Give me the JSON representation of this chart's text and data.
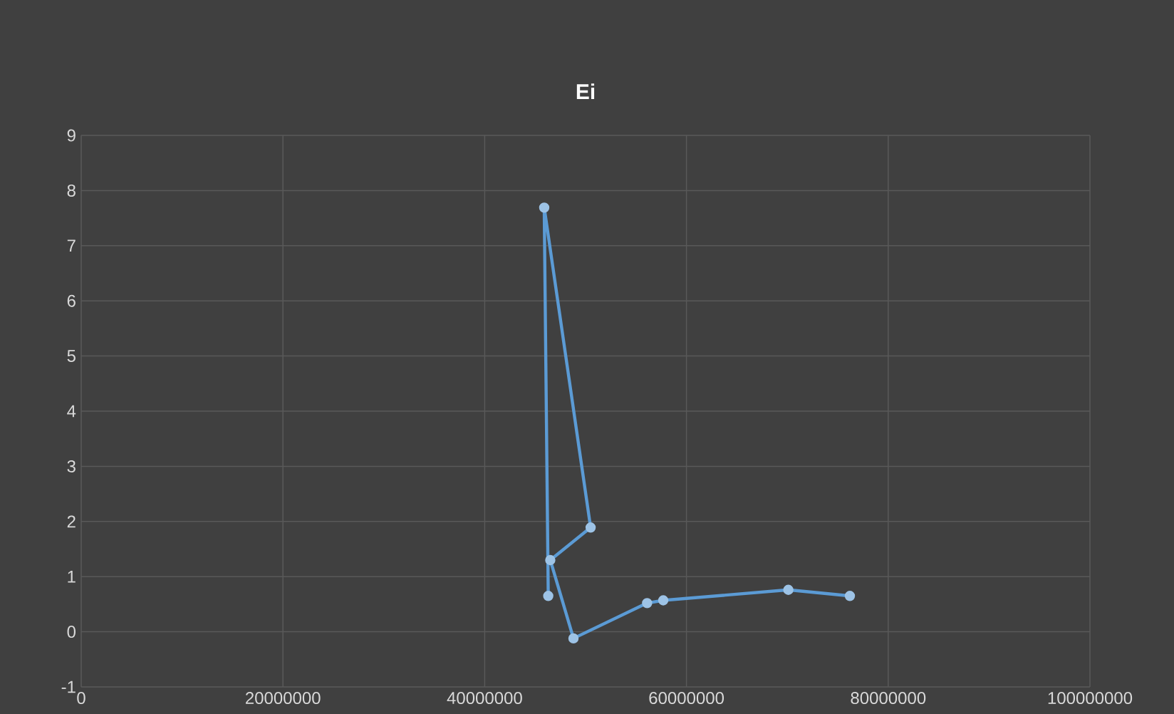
{
  "chart_data": {
    "type": "line",
    "title": "Ei",
    "x": [
      46300000,
      45900000,
      50500000,
      46500000,
      48800000,
      56100000,
      57700000,
      70100000,
      76200000
    ],
    "series": [
      {
        "color": "#5b9bd5",
        "values": [
          0.65,
          7.69,
          1.89,
          1.3,
          -0.12,
          0.52,
          0.57,
          0.76,
          0.65
        ]
      }
    ],
    "xlim": [
      0,
      100000000
    ],
    "xticks": [
      0,
      20000000,
      40000000,
      60000000,
      80000000,
      100000000
    ],
    "ylim": [
      -1,
      9
    ],
    "yticks": [
      -1,
      0,
      1,
      2,
      3,
      4,
      5,
      6,
      7,
      8,
      9
    ],
    "grid": true,
    "marker": "circle",
    "line_style": "solid"
  }
}
